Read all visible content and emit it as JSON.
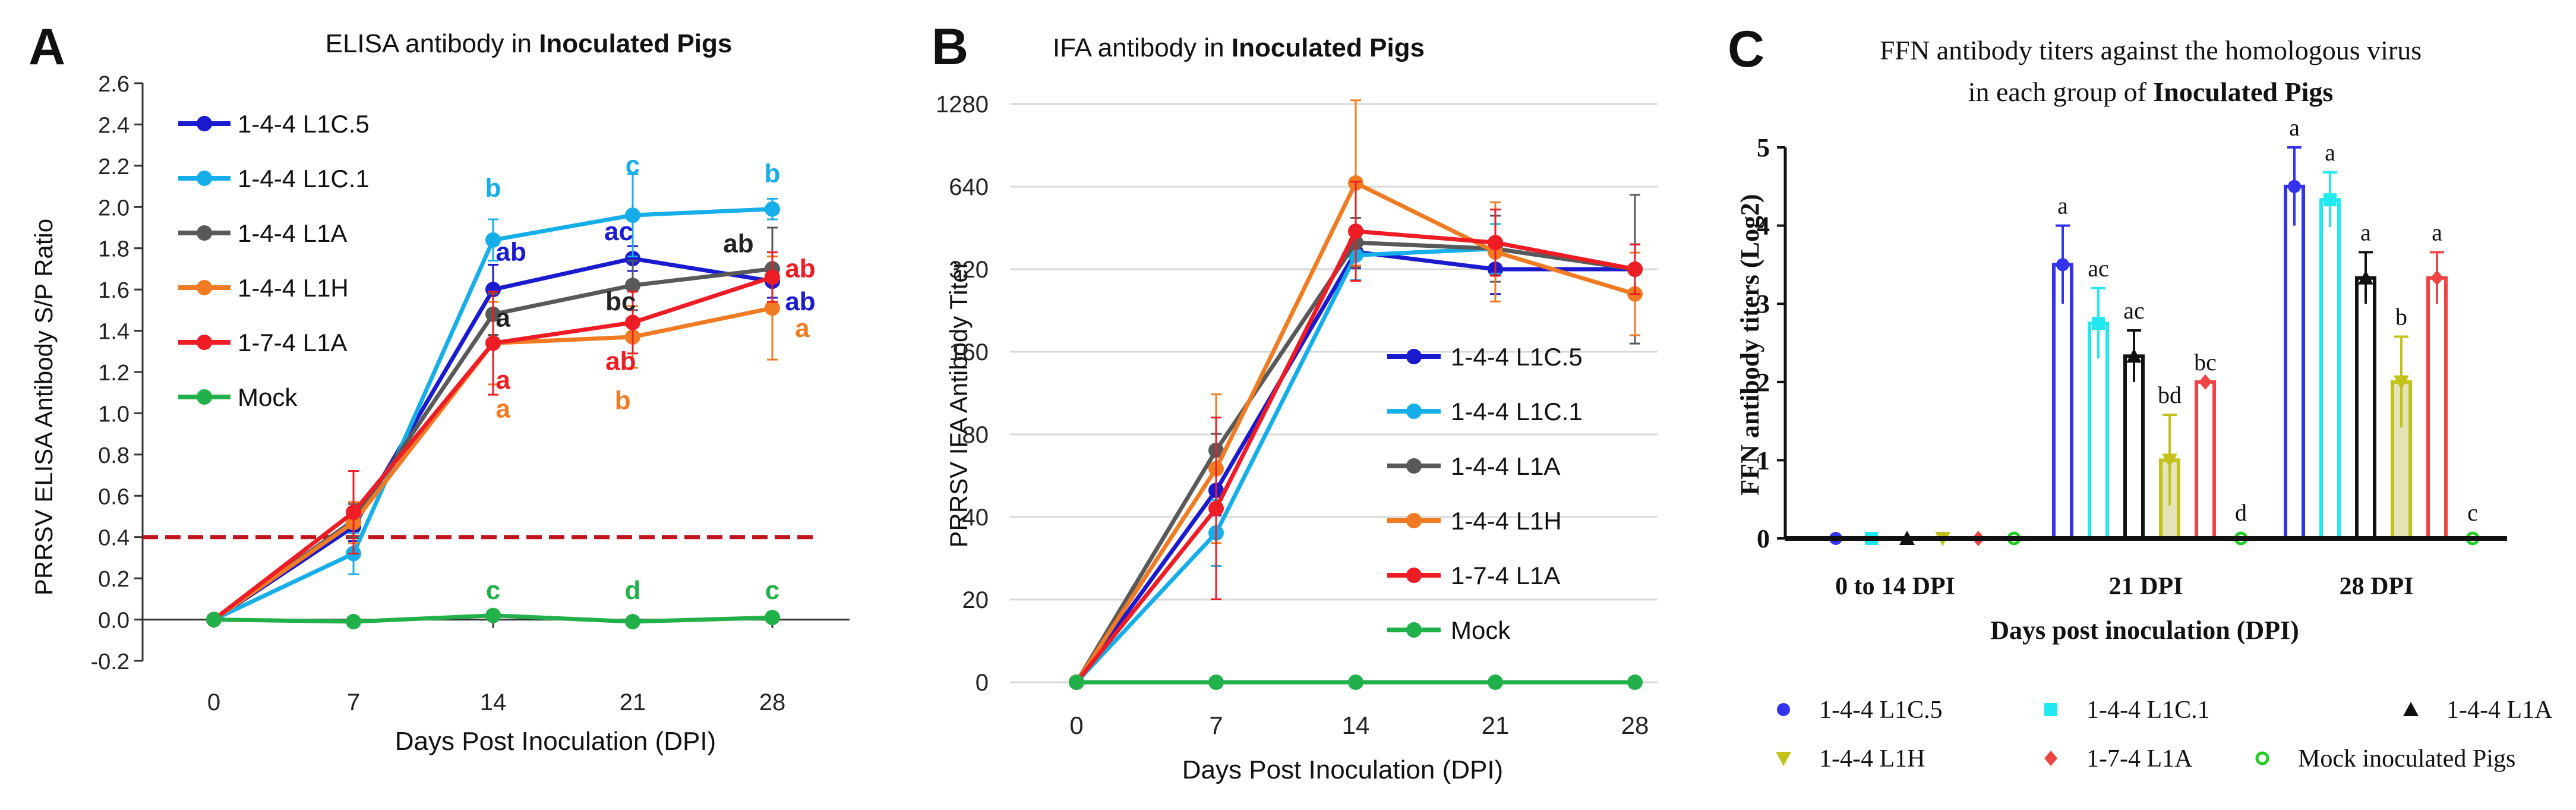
{
  "chart_data": [
    {
      "panel_letter": "A",
      "type": "line",
      "title_plain": "ELISA antibody in ",
      "title_bold": "Inoculated Pigs",
      "xlabel": "Days Post Inoculation (DPI)",
      "ylabel": "PRRSV ELISA Antibody S/P Ratio",
      "x": [
        0,
        7,
        14,
        21,
        28
      ],
      "ylim": [
        -0.2,
        2.6
      ],
      "yticks": [
        "-0.2",
        "0.0",
        "0.2",
        "0.4",
        "0.6",
        "0.8",
        "1.0",
        "1.2",
        "1.4",
        "1.6",
        "1.8",
        "2.0",
        "2.2",
        "2.4",
        "2.6"
      ],
      "cutoff": 0.4,
      "series": [
        {
          "name": "1-4-4 L1C.5",
          "color": "#1a1acf",
          "values": [
            0,
            0.45,
            1.6,
            1.75,
            1.64
          ],
          "err": [
            0.01,
            0.07,
            0.12,
            0.06,
            0.08
          ]
        },
        {
          "name": "1-4-4 L1C.1",
          "color": "#16aee8",
          "values": [
            0,
            0.32,
            1.84,
            1.96,
            1.99
          ],
          "err": [
            0.01,
            0.1,
            0.1,
            0.2,
            0.05
          ]
        },
        {
          "name": "1-4-4 L1A",
          "color": "#595959",
          "values": [
            0,
            0.48,
            1.48,
            1.62,
            1.7
          ],
          "err": [
            0.01,
            0.08,
            0.1,
            0.12,
            0.2
          ]
        },
        {
          "name": "1-4-4 L1H",
          "color": "#f07b22",
          "values": [
            0,
            0.47,
            1.34,
            1.37,
            1.51
          ],
          "err": [
            0.01,
            0.1,
            0.2,
            0.15,
            0.25
          ]
        },
        {
          "name": "1-7-4 L1A",
          "color": "#ee1c25",
          "values": [
            0,
            0.52,
            1.34,
            1.44,
            1.66
          ],
          "err": [
            0.01,
            0.2,
            0.25,
            0.15,
            0.12
          ]
        },
        {
          "name": "Mock",
          "color": "#22b04b",
          "values": [
            0,
            -0.01,
            0.02,
            -0.01,
            0.01
          ],
          "err": [
            0,
            0,
            0,
            0,
            0
          ]
        }
      ],
      "annotations": [
        {
          "text": "b",
          "color": "#16aee8",
          "x": 14,
          "y": 2.05
        },
        {
          "text": "ab",
          "color": "#1a1acf",
          "x": 14.9,
          "y": 1.74
        },
        {
          "text": "a",
          "color": "#222222",
          "x": 14.5,
          "y": 1.42
        },
        {
          "text": "a",
          "color": "#ee1c25",
          "x": 14.5,
          "y": 1.12
        },
        {
          "text": "a",
          "color": "#f07b22",
          "x": 14.5,
          "y": 0.98
        },
        {
          "text": "c",
          "color": "#16aee8",
          "x": 21,
          "y": 2.16
        },
        {
          "text": "ac",
          "color": "#1a1acf",
          "x": 20.3,
          "y": 1.84
        },
        {
          "text": "bc",
          "color": "#222222",
          "x": 20.4,
          "y": 1.5
        },
        {
          "text": "ab",
          "color": "#ee1c25",
          "x": 20.4,
          "y": 1.21
        },
        {
          "text": "b",
          "color": "#f07b22",
          "x": 20.5,
          "y": 1.02
        },
        {
          "text": "b",
          "color": "#16aee8",
          "x": 28,
          "y": 2.12
        },
        {
          "text": "ab",
          "color": "#222222",
          "x": 26.3,
          "y": 1.78
        },
        {
          "text": "ab",
          "color": "#ee1c25",
          "x": 29.4,
          "y": 1.66
        },
        {
          "text": "ab",
          "color": "#1a1acf",
          "x": 29.4,
          "y": 1.5
        },
        {
          "text": "a",
          "color": "#f07b22",
          "x": 29.5,
          "y": 1.37
        },
        {
          "text": "c",
          "color": "#22b04b",
          "x": 14,
          "y": 0.1
        },
        {
          "text": "d",
          "color": "#22b04b",
          "x": 21,
          "y": 0.1
        },
        {
          "text": "c",
          "color": "#22b04b",
          "x": 28,
          "y": 0.1
        }
      ]
    },
    {
      "panel_letter": "B",
      "type": "line",
      "title_plain": "IFA antibody in ",
      "title_bold": "Inoculated Pigs",
      "xlabel": "Days Post Inoculation (DPI)",
      "ylabel": "PRRSV IFA Antibody Titer",
      "x": [
        0,
        7,
        14,
        21,
        28
      ],
      "yscale": "log2 (0 baseline)",
      "yticks": [
        "0",
        "20",
        "40",
        "80",
        "160",
        "320",
        "640",
        "1280"
      ],
      "series": [
        {
          "name": "1-4-4 L1C.5",
          "color": "#1a1acf",
          "values": [
            0,
            50,
            370,
            320,
            320
          ]
        },
        {
          "name": "1-4-4 L1C.1",
          "color": "#16aee8",
          "values": [
            0,
            35,
            360,
            380,
            320
          ]
        },
        {
          "name": "1-4-4 L1A",
          "color": "#595959",
          "values": [
            0,
            70,
            400,
            380,
            320
          ]
        },
        {
          "name": "1-4-4 L1H",
          "color": "#f07b22",
          "values": [
            0,
            60,
            660,
            370,
            260
          ]
        },
        {
          "name": "1-7-4 L1A",
          "color": "#ee1c25",
          "values": [
            0,
            43,
            440,
            400,
            320
          ]
        },
        {
          "name": "Mock",
          "color": "#22b04b",
          "values": [
            0,
            0,
            0,
            0,
            0
          ]
        }
      ]
    },
    {
      "panel_letter": "C",
      "type": "bar",
      "title_line1": "FFN antibody titers against the homologous virus",
      "title_line2_plain": "in each group of ",
      "title_line2_bold": "Inoculated Pigs",
      "xlabel": "Days post inoculation (DPI)",
      "ylabel": "FFN antibody titers (Log2)",
      "categories": [
        "0 to 14 DPI",
        "21 DPI",
        "28 DPI"
      ],
      "ylim": [
        0,
        5
      ],
      "yticks": [
        "0",
        "1",
        "2",
        "3",
        "4",
        "5"
      ],
      "series": [
        {
          "name": "1-4-4 L1C.5",
          "color": "#3333ee",
          "marker": "circle",
          "values": [
            0,
            3.5,
            4.5
          ],
          "err": [
            0,
            0.5,
            0.5
          ],
          "letters": [
            "",
            "a",
            "a"
          ]
        },
        {
          "name": "1-4-4 L1C.1",
          "color": "#22e8f0",
          "marker": "square",
          "values": [
            0,
            2.75,
            4.33
          ],
          "err": [
            0,
            0.45,
            0.35
          ],
          "letters": [
            "",
            "ac",
            "a"
          ]
        },
        {
          "name": "1-4-4 L1A",
          "color": "#111111",
          "marker": "triangle",
          "values": [
            0,
            2.33,
            3.33
          ],
          "err": [
            0,
            0.33,
            0.33
          ],
          "letters": [
            "",
            "ac",
            "a"
          ]
        },
        {
          "name": "1-4-4 L1H",
          "color": "#c2c21a",
          "marker": "triangle-down",
          "values": [
            0,
            1.0,
            2.0
          ],
          "err": [
            0,
            0.58,
            0.58
          ],
          "letters": [
            "",
            "bd",
            "b"
          ]
        },
        {
          "name": "1-7-4 L1A",
          "color": "#ee4444",
          "marker": "diamond",
          "values": [
            0,
            2.0,
            3.33
          ],
          "err": [
            0,
            0,
            0.33
          ],
          "letters": [
            "",
            "bc",
            "a"
          ]
        },
        {
          "name": "Mock inoculated Pigs",
          "color": "#22cc22",
          "marker": "open-circle",
          "values": [
            0,
            0,
            0
          ],
          "err": [
            0,
            0,
            0
          ],
          "letters": [
            "",
            "d",
            "c"
          ]
        }
      ]
    }
  ]
}
